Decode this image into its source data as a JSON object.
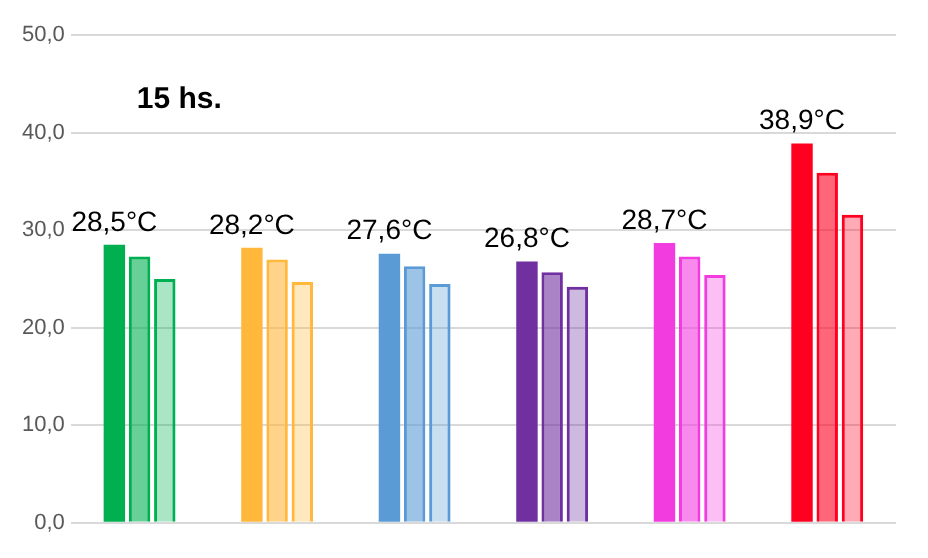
{
  "chart_data": {
    "type": "bar",
    "title": "15 hs.",
    "categories": [
      null,
      null,
      null,
      null,
      null,
      null
    ],
    "series": [
      {
        "colors": [
          "#00b050",
          "#ffb83c",
          "#5b9bd5",
          "#7030a0",
          "#f23ce0",
          "#ff0020"
        ],
        "values": [
          28.5,
          28.2,
          27.6,
          26.8,
          28.7,
          38.9
        ],
        "value_labels": [
          "28,5°C",
          "28,2°C",
          "27,6°C",
          "26,8°C",
          "28,7°C",
          "38,9°C"
        ]
      },
      {
        "colors": [
          "#00b050",
          "#ffb83c",
          "#5b9bd5",
          "#7030a0",
          "#f23ce0",
          "#ff0020"
        ],
        "values": [
          27.3,
          27.0,
          26.3,
          25.7,
          27.3,
          35.9
        ]
      },
      {
        "colors": [
          "#00b050",
          "#ffb83c",
          "#5b9bd5",
          "#7030a0",
          "#f23ce0",
          "#ff0020"
        ],
        "values": [
          25.0,
          24.7,
          24.5,
          24.2,
          25.4,
          31.6
        ]
      }
    ],
    "ylim": [
      0,
      50
    ],
    "yticks": [
      {
        "value": 0,
        "label": "0,0"
      },
      {
        "value": 10,
        "label": "10,0"
      },
      {
        "value": 20,
        "label": "20,0"
      },
      {
        "value": 30,
        "label": "30,0"
      },
      {
        "value": 40,
        "label": "40,0"
      },
      {
        "value": 50,
        "label": "50,0"
      }
    ],
    "grid": "y",
    "legend": false
  }
}
